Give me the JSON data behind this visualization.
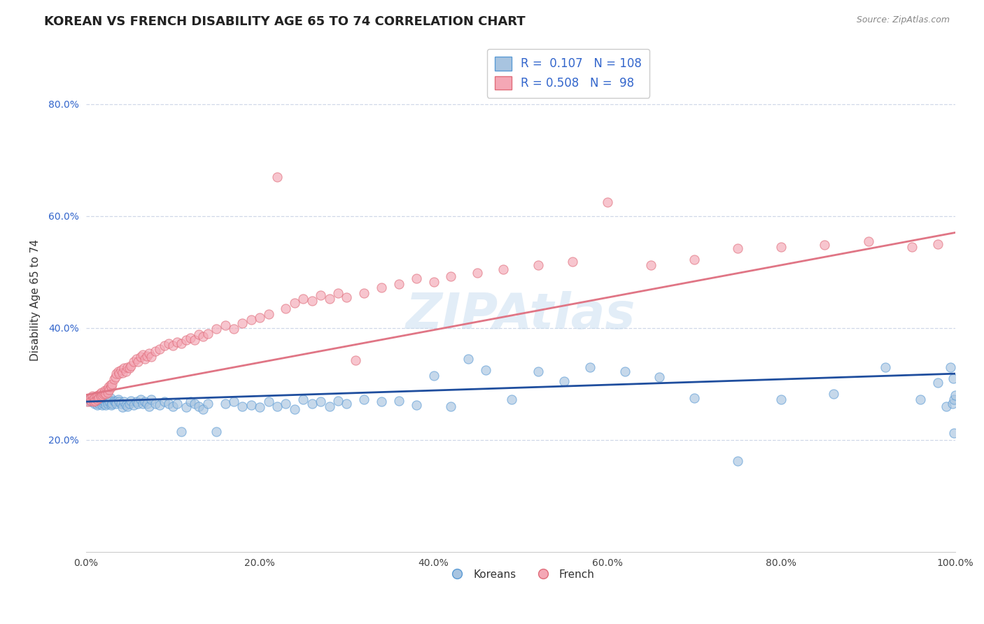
{
  "title": "KOREAN VS FRENCH DISABILITY AGE 65 TO 74 CORRELATION CHART",
  "source": "Source: ZipAtlas.com",
  "ylabel": "Disability Age 65 to 74",
  "xlim": [
    0.0,
    1.0
  ],
  "ylim": [
    0.0,
    0.9
  ],
  "xtick_labels": [
    "0.0%",
    "20.0%",
    "40.0%",
    "60.0%",
    "80.0%",
    "100.0%"
  ],
  "xtick_positions": [
    0.0,
    0.2,
    0.4,
    0.6,
    0.8,
    1.0
  ],
  "ytick_labels": [
    "20.0%",
    "40.0%",
    "60.0%",
    "80.0%"
  ],
  "ytick_positions": [
    0.2,
    0.4,
    0.6,
    0.8
  ],
  "korean_color": "#a8c4e0",
  "korean_edge_color": "#5b9bd5",
  "french_color": "#f4a7b5",
  "french_edge_color": "#e06c7a",
  "korean_line_color": "#1f4e9e",
  "french_line_color": "#e07585",
  "korean_R": 0.107,
  "korean_N": 108,
  "french_R": 0.508,
  "french_N": 98,
  "watermark": "ZIPAtlas",
  "background_color": "#ffffff",
  "grid_color": "#d0d8e8",
  "legend_text_color": "#3366cc",
  "title_fontsize": 13,
  "axis_label_fontsize": 11,
  "legend_fontsize": 12,
  "korean_x": [
    0.002,
    0.004,
    0.005,
    0.006,
    0.007,
    0.008,
    0.009,
    0.01,
    0.011,
    0.012,
    0.013,
    0.013,
    0.014,
    0.015,
    0.016,
    0.017,
    0.018,
    0.019,
    0.02,
    0.02,
    0.021,
    0.022,
    0.023,
    0.024,
    0.025,
    0.026,
    0.027,
    0.028,
    0.029,
    0.03,
    0.032,
    0.034,
    0.035,
    0.037,
    0.038,
    0.04,
    0.042,
    0.044,
    0.046,
    0.048,
    0.05,
    0.052,
    0.055,
    0.058,
    0.06,
    0.063,
    0.065,
    0.068,
    0.07,
    0.073,
    0.075,
    0.08,
    0.085,
    0.09,
    0.095,
    0.1,
    0.105,
    0.11,
    0.115,
    0.12,
    0.125,
    0.13,
    0.135,
    0.14,
    0.15,
    0.16,
    0.17,
    0.18,
    0.19,
    0.2,
    0.21,
    0.22,
    0.23,
    0.24,
    0.25,
    0.26,
    0.27,
    0.28,
    0.29,
    0.3,
    0.32,
    0.34,
    0.36,
    0.38,
    0.4,
    0.42,
    0.44,
    0.46,
    0.49,
    0.52,
    0.55,
    0.58,
    0.62,
    0.66,
    0.7,
    0.75,
    0.8,
    0.86,
    0.92,
    0.96,
    0.98,
    0.99,
    0.995,
    0.997,
    0.998,
    0.999,
    0.999,
    1.0
  ],
  "korean_y": [
    0.27,
    0.272,
    0.268,
    0.275,
    0.27,
    0.268,
    0.272,
    0.265,
    0.27,
    0.268,
    0.275,
    0.262,
    0.27,
    0.265,
    0.272,
    0.268,
    0.275,
    0.262,
    0.265,
    0.27,
    0.268,
    0.275,
    0.262,
    0.27,
    0.265,
    0.272,
    0.268,
    0.275,
    0.262,
    0.265,
    0.27,
    0.268,
    0.265,
    0.272,
    0.268,
    0.265,
    0.258,
    0.268,
    0.262,
    0.26,
    0.265,
    0.27,
    0.262,
    0.268,
    0.265,
    0.272,
    0.265,
    0.268,
    0.265,
    0.26,
    0.272,
    0.265,
    0.262,
    0.268,
    0.265,
    0.26,
    0.265,
    0.215,
    0.258,
    0.268,
    0.265,
    0.26,
    0.255,
    0.265,
    0.215,
    0.265,
    0.268,
    0.26,
    0.262,
    0.258,
    0.268,
    0.26,
    0.265,
    0.255,
    0.272,
    0.265,
    0.268,
    0.26,
    0.27,
    0.265,
    0.272,
    0.268,
    0.27,
    0.262,
    0.315,
    0.26,
    0.345,
    0.325,
    0.272,
    0.322,
    0.305,
    0.33,
    0.322,
    0.312,
    0.275,
    0.162,
    0.272,
    0.282,
    0.33,
    0.272,
    0.302,
    0.26,
    0.33,
    0.265,
    0.31,
    0.272,
    0.212,
    0.28
  ],
  "french_x": [
    0.002,
    0.004,
    0.005,
    0.006,
    0.007,
    0.008,
    0.009,
    0.01,
    0.011,
    0.012,
    0.013,
    0.014,
    0.015,
    0.016,
    0.017,
    0.018,
    0.019,
    0.02,
    0.021,
    0.022,
    0.023,
    0.024,
    0.025,
    0.026,
    0.027,
    0.028,
    0.029,
    0.03,
    0.032,
    0.034,
    0.035,
    0.037,
    0.038,
    0.04,
    0.042,
    0.044,
    0.046,
    0.048,
    0.05,
    0.052,
    0.055,
    0.058,
    0.06,
    0.063,
    0.065,
    0.068,
    0.07,
    0.073,
    0.075,
    0.08,
    0.085,
    0.09,
    0.095,
    0.1,
    0.105,
    0.11,
    0.115,
    0.12,
    0.125,
    0.13,
    0.135,
    0.14,
    0.15,
    0.16,
    0.17,
    0.18,
    0.19,
    0.2,
    0.21,
    0.22,
    0.23,
    0.24,
    0.25,
    0.26,
    0.27,
    0.28,
    0.29,
    0.3,
    0.31,
    0.32,
    0.34,
    0.36,
    0.38,
    0.4,
    0.42,
    0.45,
    0.48,
    0.52,
    0.56,
    0.6,
    0.65,
    0.7,
    0.75,
    0.8,
    0.85,
    0.9,
    0.95,
    0.98
  ],
  "french_y": [
    0.268,
    0.272,
    0.275,
    0.27,
    0.278,
    0.272,
    0.268,
    0.275,
    0.27,
    0.278,
    0.272,
    0.28,
    0.275,
    0.282,
    0.278,
    0.285,
    0.28,
    0.282,
    0.285,
    0.288,
    0.282,
    0.29,
    0.285,
    0.295,
    0.29,
    0.298,
    0.295,
    0.3,
    0.308,
    0.312,
    0.318,
    0.322,
    0.318,
    0.325,
    0.32,
    0.328,
    0.322,
    0.33,
    0.328,
    0.332,
    0.34,
    0.345,
    0.34,
    0.348,
    0.352,
    0.345,
    0.35,
    0.355,
    0.348,
    0.358,
    0.362,
    0.368,
    0.372,
    0.368,
    0.375,
    0.372,
    0.378,
    0.382,
    0.378,
    0.388,
    0.385,
    0.39,
    0.398,
    0.405,
    0.398,
    0.408,
    0.415,
    0.418,
    0.425,
    0.67,
    0.435,
    0.445,
    0.452,
    0.448,
    0.458,
    0.452,
    0.462,
    0.455,
    0.342,
    0.462,
    0.472,
    0.478,
    0.488,
    0.482,
    0.492,
    0.498,
    0.505,
    0.512,
    0.518,
    0.625,
    0.512,
    0.522,
    0.542,
    0.545,
    0.548,
    0.555,
    0.545,
    0.55
  ]
}
